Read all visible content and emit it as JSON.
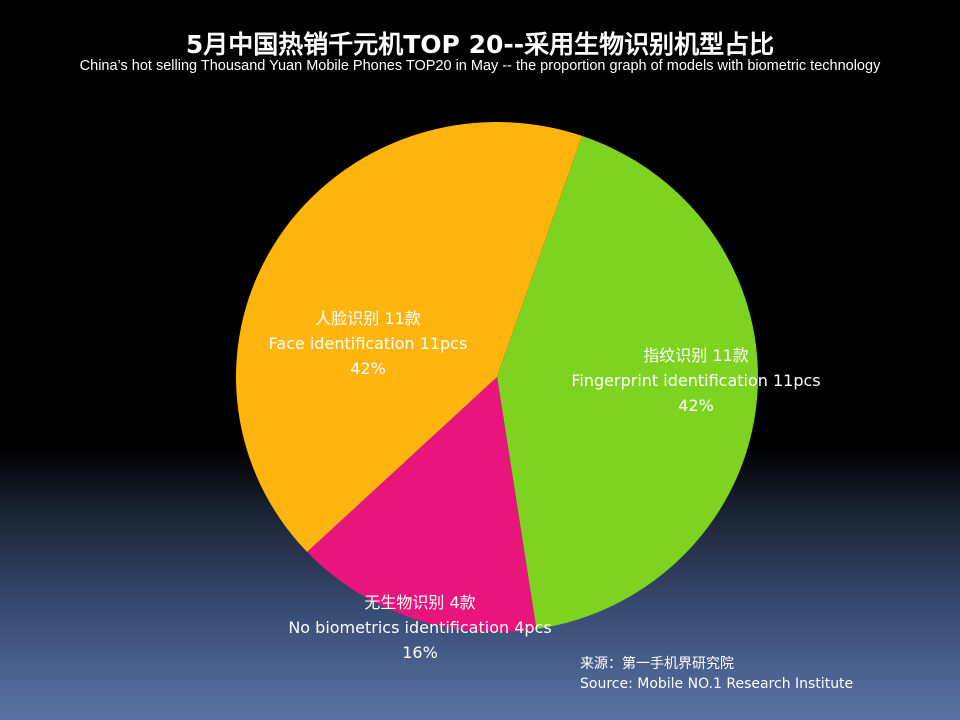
{
  "chart_data": {
    "type": "pie",
    "title": "5月中国热销千元机TOP 20--采用生物识别机型占比",
    "subtitle": "China’s hot selling Thousand Yuan Mobile Phones TOP20 in May -- the proportion graph of models with biometric technology",
    "slices": [
      {
        "label_cn": "指纹识别  11款",
        "label_en": "Fingerprint identification 11pcs",
        "count": 11,
        "percent_label": "42%",
        "color": "#7ED321"
      },
      {
        "label_cn": "无生物识别  4款",
        "label_en": "No biometrics identification 4pcs",
        "count": 4,
        "percent_label": "16%",
        "color": "#E8157D"
      },
      {
        "label_cn": "人脸识别 11款",
        "label_en": "Face identification 11pcs",
        "count": 11,
        "percent_label": "42%",
        "color": "#FFB50D"
      }
    ]
  },
  "source": {
    "cn": "来源：第一手机界研究院",
    "en": "Source: Mobile NO.1 Research Institute"
  }
}
